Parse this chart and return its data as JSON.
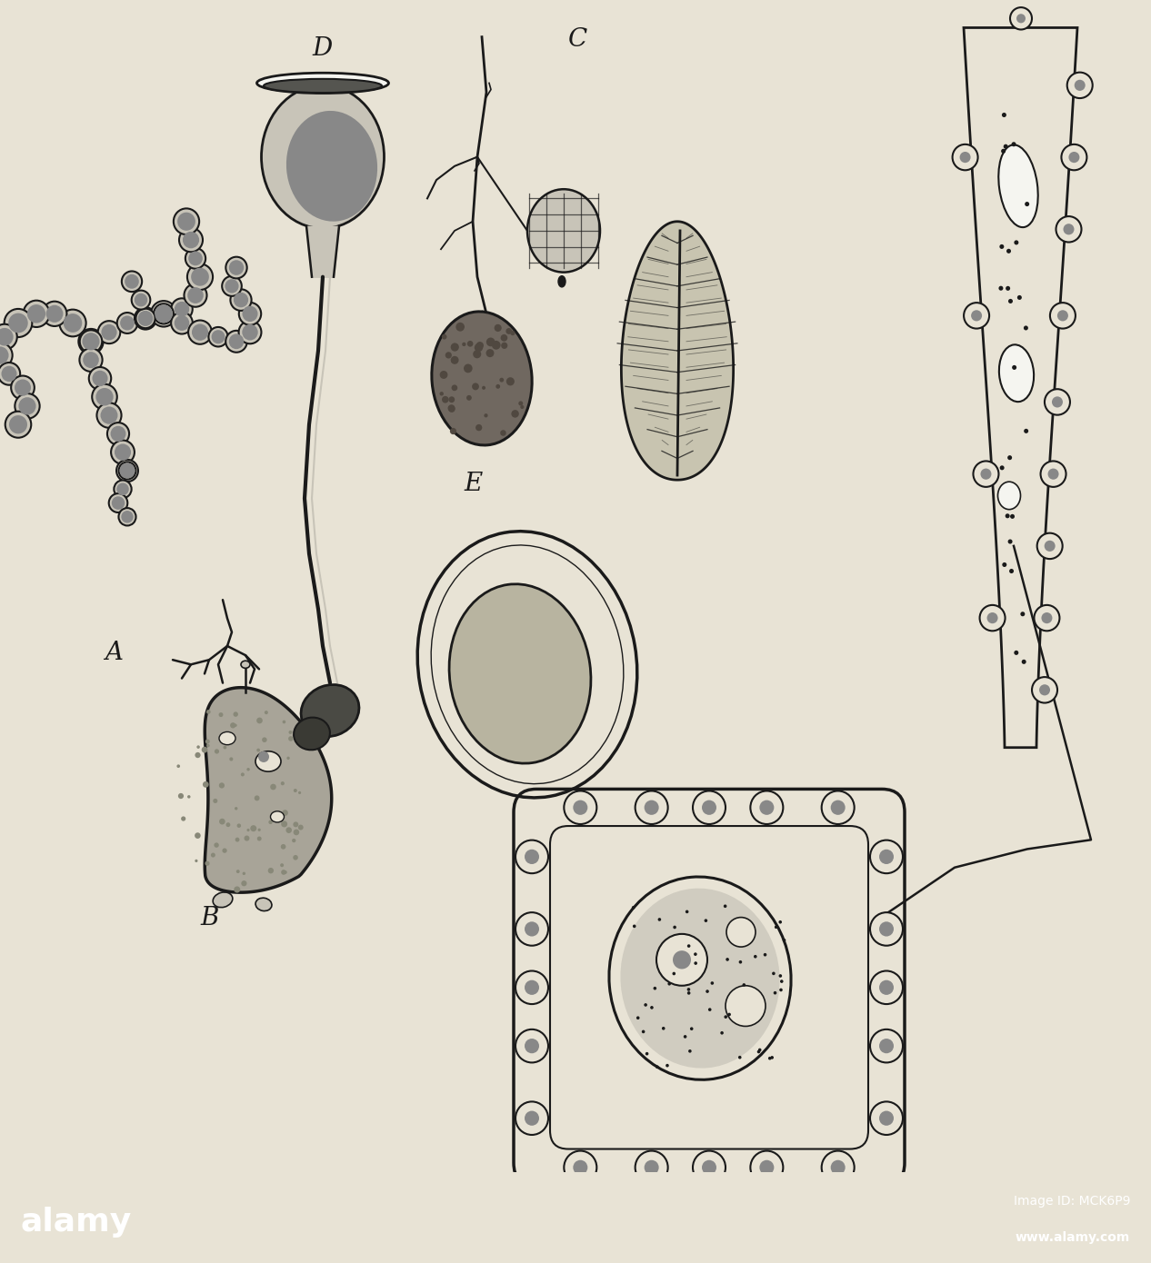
{
  "bg_color": "#e8e3d5",
  "dark": "#1a1a1a",
  "mid_gray": "#888888",
  "light_gray": "#c8c4b8",
  "fill_gray": "#a0a090",
  "fill_mid": "#787870",
  "white": "#f5f5f0",
  "label_fontsize": 20,
  "alamy_bg": "#000000",
  "alamy_text": "alamy",
  "alamy_id_text": "Image ID: MCK6P9",
  "alamy_url_text": "www.alamy.com"
}
